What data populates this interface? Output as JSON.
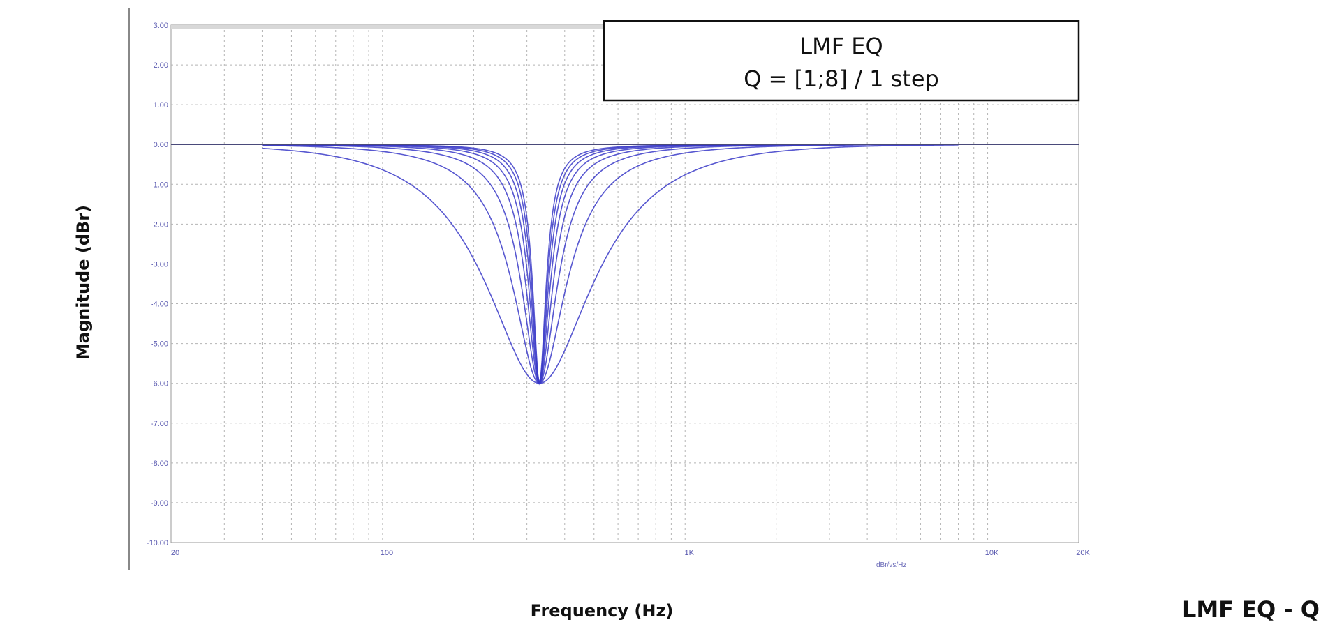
{
  "chart_data": {
    "type": "line",
    "title": "LMF EQ",
    "subtitle": "Q = [1;8] / 1 step",
    "caption": "LMF EQ - Q",
    "xlabel": "Frequency (Hz)",
    "ylabel": "Magnitude (dBr)",
    "x_unit_label": "dBr/vs/Hz",
    "xscale": "log",
    "xlim": [
      20,
      20000
    ],
    "ylim": [
      -10,
      3
    ],
    "grid": true,
    "legend_position": "top-right",
    "line_color": "#3a3ac8",
    "center_frequency_hz": 330,
    "gain_db": -6,
    "curve_freq_range_hz": [
      40,
      8000
    ],
    "x_tick_values": [
      20,
      100,
      1000,
      10000,
      20000
    ],
    "x_tick_labels": [
      "20",
      "100",
      "1K",
      "10K",
      "20K"
    ],
    "y_ticks": [
      {
        "value": 3,
        "label": "3.00"
      },
      {
        "value": 2,
        "label": "2.00"
      },
      {
        "value": 1,
        "label": "1.00"
      },
      {
        "value": 0,
        "label": "0.00"
      },
      {
        "value": -1,
        "label": "-1.00"
      },
      {
        "value": -2,
        "label": "-2.00"
      },
      {
        "value": -3,
        "label": "-3.00"
      },
      {
        "value": -4,
        "label": "-4.00"
      },
      {
        "value": -5,
        "label": "-5.00"
      },
      {
        "value": -6,
        "label": "-6.00"
      },
      {
        "value": -7,
        "label": "-7.00"
      },
      {
        "value": -8,
        "label": "-8.00"
      },
      {
        "value": -9,
        "label": "-9.00"
      },
      {
        "value": -10,
        "label": "-10.00"
      }
    ],
    "series": [
      {
        "q": 1
      },
      {
        "q": 2
      },
      {
        "q": 3
      },
      {
        "q": 4
      },
      {
        "q": 5
      },
      {
        "q": 6
      },
      {
        "q": 7
      },
      {
        "q": 8
      }
    ]
  }
}
